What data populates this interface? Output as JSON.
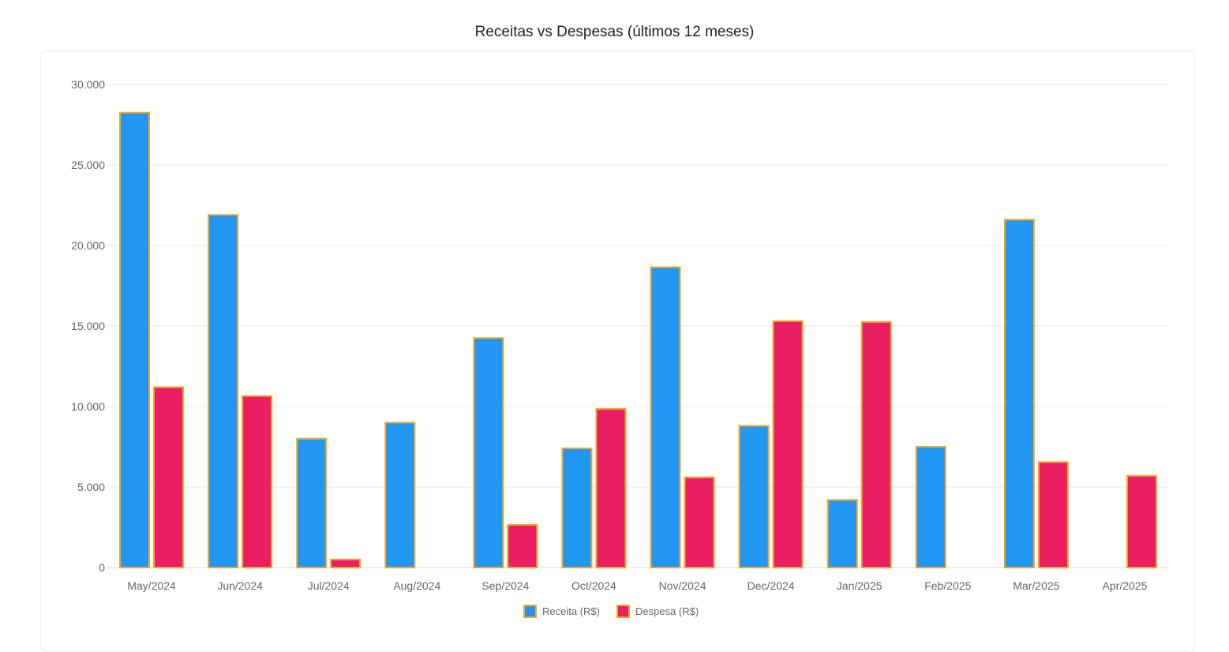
{
  "chart_data": {
    "type": "bar",
    "title": "Receitas vs Despesas (últimos 12 meses)",
    "xlabel": "",
    "ylabel": "",
    "ylim": [
      0,
      30000
    ],
    "yticks": [
      0,
      5000,
      10000,
      15000,
      20000,
      25000,
      30000
    ],
    "ytick_labels": [
      "0",
      "5.000",
      "10.000",
      "15.000",
      "20.000",
      "25.000",
      "30.000"
    ],
    "grid": true,
    "legend_position": "bottom",
    "categories": [
      "May/2024",
      "Jun/2024",
      "Jul/2024",
      "Aug/2024",
      "Sep/2024",
      "Oct/2024",
      "Nov/2024",
      "Dec/2024",
      "Jan/2025",
      "Feb/2025",
      "Mar/2025",
      "Apr/2025"
    ],
    "series": [
      {
        "name": "Receita (R$)",
        "color": "#2196F3",
        "border": "#F5A623",
        "values": [
          28250,
          21900,
          8000,
          9000,
          14250,
          7400,
          18650,
          8800,
          4200,
          7500,
          21600,
          0
        ]
      },
      {
        "name": "Despesa (R$)",
        "color": "#E91E63",
        "border": "#F5A623",
        "values": [
          11200,
          10650,
          500,
          0,
          2650,
          9850,
          5600,
          15300,
          15250,
          0,
          6550,
          5700
        ]
      }
    ]
  }
}
